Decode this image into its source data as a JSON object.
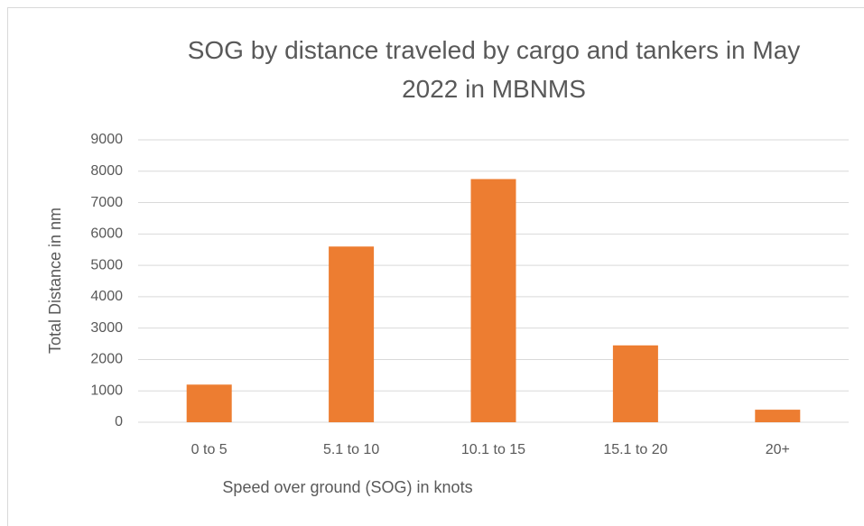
{
  "chart_data": {
    "type": "bar",
    "title": "SOG by distance traveled by cargo and tankers in May 2022 in MBNMS",
    "x_label": "Speed over ground (SOG) in knots",
    "y_label": "Total Distance in nm",
    "categories": [
      "0 to 5",
      "5.1 to 10",
      "10.1 to 15",
      "15.1 to 20",
      "20+"
    ],
    "values": [
      1200,
      5600,
      7750,
      2450,
      400
    ],
    "color": "#ed7d31",
    "ylim": [
      0,
      9000
    ],
    "yticks": [
      0,
      1000,
      2000,
      3000,
      4000,
      5000,
      6000,
      7000,
      8000,
      9000
    ],
    "grid": true
  }
}
